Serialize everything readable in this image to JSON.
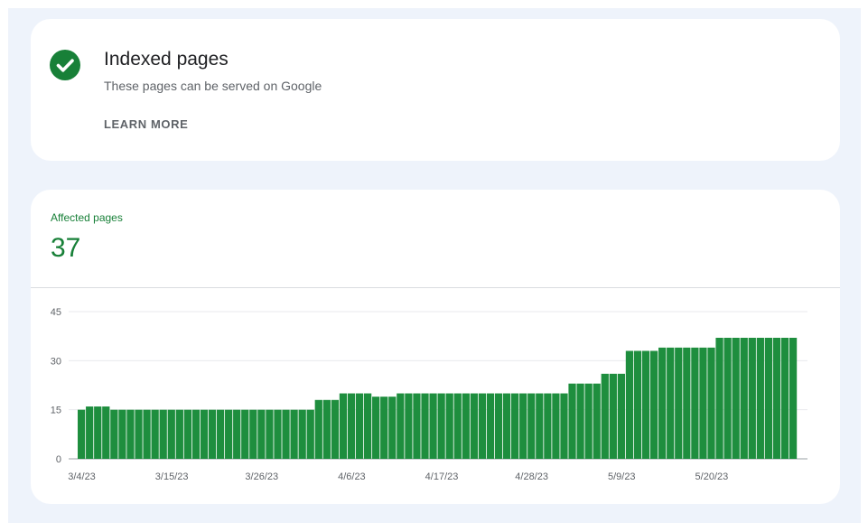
{
  "status": {
    "icon": "check-circle-icon",
    "title": "Indexed pages",
    "subtitle": "These pages can be served on Google",
    "learn_more_label": "LEARN MORE"
  },
  "metric": {
    "label": "Affected pages",
    "value": "37"
  },
  "colors": {
    "accent": "#188038",
    "bar": "#1e8e3e",
    "background": "#eef3fb"
  },
  "chart_data": {
    "type": "bar",
    "title": "",
    "xlabel": "",
    "ylabel": "",
    "ylim": [
      0,
      45
    ],
    "yticks": [
      0,
      15,
      30,
      45
    ],
    "grid": true,
    "x_tick_labels": [
      "3/4/23",
      "3/15/23",
      "3/26/23",
      "4/6/23",
      "4/17/23",
      "4/28/23",
      "5/9/23",
      "5/20/23"
    ],
    "start_date": "3/4/23",
    "values": [
      15,
      16,
      16,
      16,
      15,
      15,
      15,
      15,
      15,
      15,
      15,
      15,
      15,
      15,
      15,
      15,
      15,
      15,
      15,
      15,
      15,
      15,
      15,
      15,
      15,
      15,
      15,
      15,
      15,
      18,
      18,
      18,
      20,
      20,
      20,
      20,
      19,
      19,
      19,
      20,
      20,
      20,
      20,
      20,
      20,
      20,
      20,
      20,
      20,
      20,
      20,
      20,
      20,
      20,
      20,
      20,
      20,
      20,
      20,
      20,
      23,
      23,
      23,
      23,
      26,
      26,
      26,
      33,
      33,
      33,
      33,
      34,
      34,
      34,
      34,
      34,
      34,
      34,
      37,
      37,
      37,
      37,
      37,
      37,
      37,
      37,
      37,
      37
    ]
  }
}
